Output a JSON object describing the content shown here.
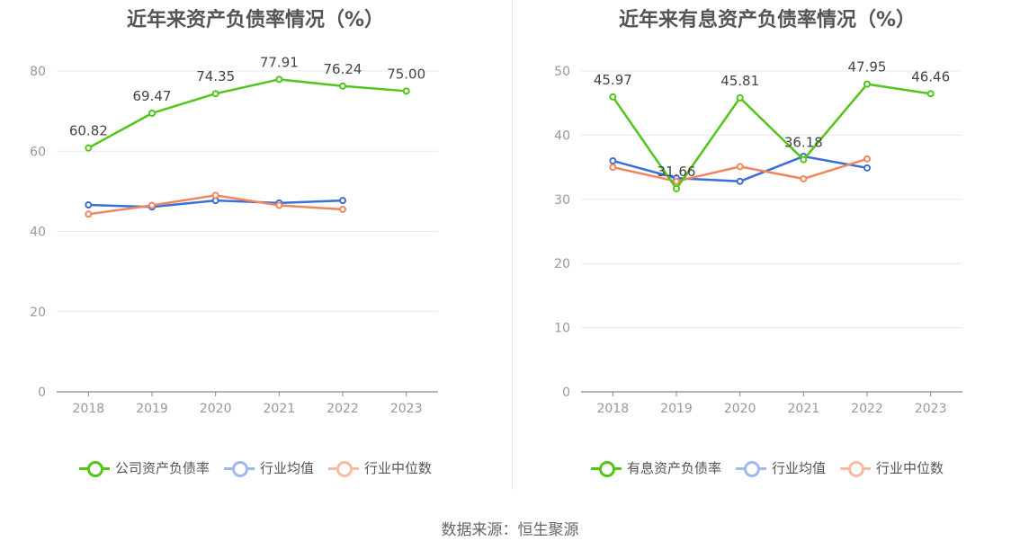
{
  "source": "数据来源：恒生聚源",
  "colors": {
    "company": "#52c41a",
    "avg": "#3a6fd8",
    "median": "#f0865f"
  },
  "chart_data": [
    {
      "type": "line",
      "title": "近年来资产负债率情况（%）",
      "categories": [
        "2018",
        "2019",
        "2020",
        "2021",
        "2022",
        "2023"
      ],
      "ylim": [
        0,
        80
      ],
      "yticks": [
        0,
        20,
        40,
        60,
        80
      ],
      "series": [
        {
          "name": "公司资产负债率",
          "color": "#52c41a",
          "labeled": true,
          "values": [
            60.82,
            69.47,
            74.35,
            77.91,
            76.24,
            75.0
          ],
          "labels": [
            "60.82",
            "69.47",
            "74.35",
            "77.91",
            "76.24",
            "75.00"
          ]
        },
        {
          "name": "行业均值",
          "color": "#3a6fd8",
          "labeled": false,
          "values": [
            46.6,
            46.1,
            47.7,
            47.1,
            47.7,
            null
          ]
        },
        {
          "name": "行业中位数",
          "color": "#f0865f",
          "labeled": false,
          "values": [
            44.3,
            46.5,
            49.0,
            46.5,
            45.5,
            null
          ]
        }
      ]
    },
    {
      "type": "line",
      "title": "近年来有息资产负债率情况（%）",
      "categories": [
        "2018",
        "2019",
        "2020",
        "2021",
        "2022",
        "2023"
      ],
      "ylim": [
        0,
        50
      ],
      "yticks": [
        0,
        10,
        20,
        30,
        40,
        50
      ],
      "series": [
        {
          "name": "有息资产负债率",
          "color": "#52c41a",
          "labeled": true,
          "values": [
            45.97,
            31.66,
            45.81,
            36.18,
            47.95,
            46.46
          ],
          "labels": [
            "45.97",
            "31.66",
            "45.81",
            "36.18",
            "47.95",
            "46.46"
          ]
        },
        {
          "name": "行业均值",
          "color": "#3a6fd8",
          "labeled": false,
          "values": [
            36.0,
            33.3,
            32.8,
            36.7,
            34.9,
            null
          ]
        },
        {
          "name": "行业中位数",
          "color": "#f0865f",
          "labeled": false,
          "values": [
            35.0,
            32.8,
            35.1,
            33.2,
            36.3,
            null
          ]
        }
      ]
    }
  ]
}
